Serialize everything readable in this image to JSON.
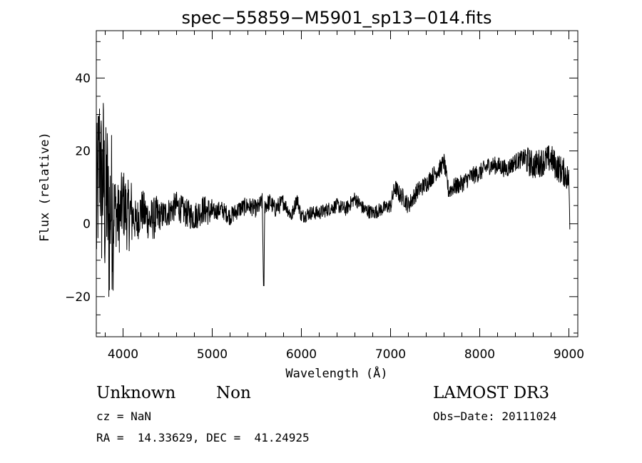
{
  "chart_data": {
    "type": "line",
    "title": "spec−55859−M5901_sp13−014.fits",
    "xlabel": "Wavelength (Å)",
    "ylabel": "Flux (relative)",
    "xlim": [
      3700,
      9100
    ],
    "ylim": [
      -31,
      53
    ],
    "x_ticks": [
      4000,
      5000,
      6000,
      7000,
      8000,
      9000
    ],
    "y_ticks": [
      -20,
      0,
      20,
      40
    ],
    "x_tick_labels": [
      "4000",
      "5000",
      "6000",
      "7000",
      "8000",
      "9000"
    ],
    "y_tick_labels": [
      "−20",
      "0",
      "20",
      "40"
    ],
    "grid": false,
    "line_color": "#000000",
    "series": [
      {
        "x": [
          3700,
          3720,
          3740,
          3760,
          3780,
          3800,
          3820,
          3840,
          3860,
          3880,
          3900,
          3950,
          4000,
          4050,
          4100,
          4150,
          4200,
          4300,
          4400,
          4500,
          4600,
          4700,
          4800,
          4900,
          5000,
          5100,
          5200,
          5300,
          5400,
          5500,
          5560,
          5577,
          5590,
          5650,
          5700,
          5800,
          5890,
          5950,
          6000,
          6100,
          6200,
          6300,
          6400,
          6500,
          6564,
          6600,
          6700,
          6800,
          6900,
          7000,
          7050,
          7100,
          7150,
          7200,
          7300,
          7400,
          7500,
          7550,
          7600,
          7650,
          7700,
          7800,
          7900,
          8000,
          8100,
          8200,
          8300,
          8400,
          8500,
          8600,
          8700,
          8800,
          8850,
          8900,
          8950,
          9000,
          9010
        ],
        "y": [
          0,
          12,
          20,
          8,
          15,
          2,
          10,
          -3,
          6,
          3,
          5,
          1,
          6,
          2,
          3,
          0,
          4,
          1,
          2,
          3,
          5,
          3,
          2,
          4,
          3,
          4,
          2,
          4,
          5,
          4,
          6,
          -17,
          5,
          6,
          4,
          6,
          2,
          7,
          2,
          3,
          3,
          4,
          5,
          4,
          6,
          7,
          4,
          3,
          4,
          5,
          10,
          8,
          7,
          5,
          9,
          11,
          14,
          15,
          17,
          9,
          10,
          11,
          13,
          14,
          16,
          16,
          15,
          17,
          18,
          16,
          17,
          18,
          16,
          15,
          14,
          12,
          0
        ]
      }
    ]
  },
  "info": {
    "object_class": "Unknown",
    "object_subclass": "Non",
    "cz": "cz = NaN",
    "coords": "RA =  14.33629, DEC =  41.24925",
    "survey": "LAMOST DR3",
    "obs_date": "Obs−Date: 20111024"
  }
}
